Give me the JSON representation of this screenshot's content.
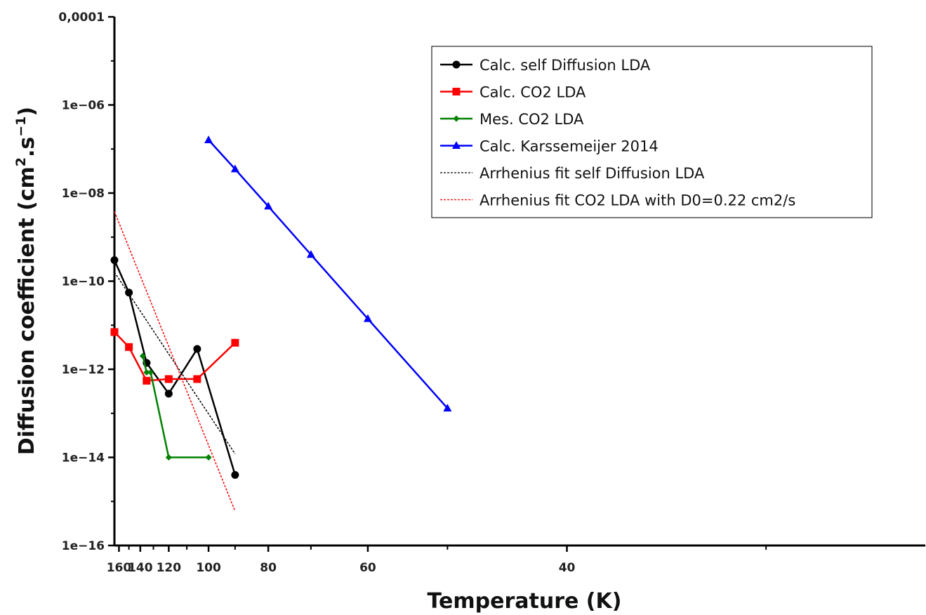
{
  "chart_data": {
    "type": "line",
    "title": "",
    "xlabel": "Temperature (K)",
    "ylabel_main": "Diffusion coefficient (cm",
    "ylabel_sup1": "2",
    "ylabel_mid": ".s",
    "ylabel_sup2": "−1",
    "ylabel_end": ")",
    "x_axis": {
      "scale": "reciprocal",
      "range": [
        165,
        25
      ]
    },
    "y_axis": {
      "scale": "log",
      "range": [
        1e-16,
        0.0001
      ]
    },
    "x_ticks": [
      {
        "value": 160,
        "label": "160"
      },
      {
        "value": 140,
        "label": "140"
      },
      {
        "value": 120,
        "label": "120"
      },
      {
        "value": 100,
        "label": "100"
      },
      {
        "value": 80,
        "label": "80"
      },
      {
        "value": 60,
        "label": "60"
      },
      {
        "value": 40,
        "label": "40"
      }
    ],
    "y_ticks": [
      {
        "value": 0.0001,
        "label": "0,0001"
      },
      {
        "value": 1e-06,
        "label": "1e−06"
      },
      {
        "value": 1e-08,
        "label": "1e−08"
      },
      {
        "value": 1e-10,
        "label": "1e−10"
      },
      {
        "value": 1e-12,
        "label": "1e−12"
      },
      {
        "value": 1e-14,
        "label": "1e−14"
      },
      {
        "value": 1e-16,
        "label": "1e−16"
      }
    ],
    "legend_position": "top-right",
    "series": [
      {
        "name": "Calc. self Diffusion LDA",
        "color": "#000000",
        "marker": "circle",
        "line": "solid",
        "points": [
          [
            165,
            3e-10
          ],
          [
            150,
            5.5e-11
          ],
          [
            135,
            1.4e-12
          ],
          [
            120,
            2.8e-13
          ],
          [
            105,
            2.9e-12
          ],
          [
            90,
            4e-15
          ]
        ]
      },
      {
        "name": "Calc. CO2 LDA",
        "color": "#ff0000",
        "marker": "square",
        "line": "solid",
        "points": [
          [
            165,
            7e-12
          ],
          [
            150,
            3.2e-12
          ],
          [
            135,
            5.5e-13
          ],
          [
            120,
            6e-13
          ],
          [
            105,
            6e-13
          ],
          [
            90,
            4e-12
          ]
        ]
      },
      {
        "name": "Mes. CO2 LDA",
        "color": "#008000",
        "marker": "diamond",
        "line": "solid",
        "points": [
          [
            138,
            2e-12
          ],
          [
            135,
            8.5e-13
          ],
          [
            132,
            8.5e-13
          ],
          [
            120,
            1e-14
          ],
          [
            100,
            1e-14
          ]
        ]
      },
      {
        "name": "Calc. Karssemeijer 2014",
        "color": "#0000ff",
        "marker": "triangle",
        "line": "solid",
        "points": [
          [
            100,
            1.6e-07
          ],
          [
            90,
            3.5e-08
          ],
          [
            80,
            5e-09
          ],
          [
            70,
            4e-10
          ],
          [
            60,
            1.4e-11
          ],
          [
            50,
            1.3e-13
          ]
        ]
      },
      {
        "name": "Arrhenius fit self Diffusion LDA",
        "color": "#000000",
        "marker": "none",
        "line": "dashed",
        "points": [
          [
            165,
            1.6e-10
          ],
          [
            90,
            1.2e-14
          ]
        ]
      },
      {
        "name": "Arrhenius fit CO2 LDA with D0=0.22 cm2/s",
        "color": "#ff0000",
        "marker": "none",
        "line": "dashed",
        "points": [
          [
            165,
            3.8e-09
          ],
          [
            90,
            6e-16
          ]
        ]
      }
    ]
  }
}
